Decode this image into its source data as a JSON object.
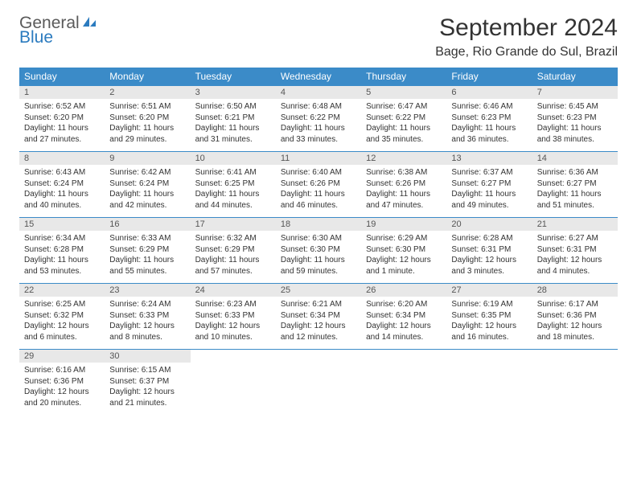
{
  "brand": {
    "name_part1": "General",
    "name_part2": "Blue",
    "icon_color": "#2b7bbf"
  },
  "header": {
    "title": "September 2024",
    "location": "Bage, Rio Grande do Sul, Brazil"
  },
  "colors": {
    "header_bg": "#3b8bc8",
    "header_text": "#ffffff",
    "daynum_bg": "#e8e8e8",
    "row_border": "#3b8bc8",
    "text": "#333333"
  },
  "day_names": [
    "Sunday",
    "Monday",
    "Tuesday",
    "Wednesday",
    "Thursday",
    "Friday",
    "Saturday"
  ],
  "weeks": [
    [
      {
        "n": "1",
        "sr": "Sunrise: 6:52 AM",
        "ss": "Sunset: 6:20 PM",
        "dl": "Daylight: 11 hours and 27 minutes."
      },
      {
        "n": "2",
        "sr": "Sunrise: 6:51 AM",
        "ss": "Sunset: 6:20 PM",
        "dl": "Daylight: 11 hours and 29 minutes."
      },
      {
        "n": "3",
        "sr": "Sunrise: 6:50 AM",
        "ss": "Sunset: 6:21 PM",
        "dl": "Daylight: 11 hours and 31 minutes."
      },
      {
        "n": "4",
        "sr": "Sunrise: 6:48 AM",
        "ss": "Sunset: 6:22 PM",
        "dl": "Daylight: 11 hours and 33 minutes."
      },
      {
        "n": "5",
        "sr": "Sunrise: 6:47 AM",
        "ss": "Sunset: 6:22 PM",
        "dl": "Daylight: 11 hours and 35 minutes."
      },
      {
        "n": "6",
        "sr": "Sunrise: 6:46 AM",
        "ss": "Sunset: 6:23 PM",
        "dl": "Daylight: 11 hours and 36 minutes."
      },
      {
        "n": "7",
        "sr": "Sunrise: 6:45 AM",
        "ss": "Sunset: 6:23 PM",
        "dl": "Daylight: 11 hours and 38 minutes."
      }
    ],
    [
      {
        "n": "8",
        "sr": "Sunrise: 6:43 AM",
        "ss": "Sunset: 6:24 PM",
        "dl": "Daylight: 11 hours and 40 minutes."
      },
      {
        "n": "9",
        "sr": "Sunrise: 6:42 AM",
        "ss": "Sunset: 6:24 PM",
        "dl": "Daylight: 11 hours and 42 minutes."
      },
      {
        "n": "10",
        "sr": "Sunrise: 6:41 AM",
        "ss": "Sunset: 6:25 PM",
        "dl": "Daylight: 11 hours and 44 minutes."
      },
      {
        "n": "11",
        "sr": "Sunrise: 6:40 AM",
        "ss": "Sunset: 6:26 PM",
        "dl": "Daylight: 11 hours and 46 minutes."
      },
      {
        "n": "12",
        "sr": "Sunrise: 6:38 AM",
        "ss": "Sunset: 6:26 PM",
        "dl": "Daylight: 11 hours and 47 minutes."
      },
      {
        "n": "13",
        "sr": "Sunrise: 6:37 AM",
        "ss": "Sunset: 6:27 PM",
        "dl": "Daylight: 11 hours and 49 minutes."
      },
      {
        "n": "14",
        "sr": "Sunrise: 6:36 AM",
        "ss": "Sunset: 6:27 PM",
        "dl": "Daylight: 11 hours and 51 minutes."
      }
    ],
    [
      {
        "n": "15",
        "sr": "Sunrise: 6:34 AM",
        "ss": "Sunset: 6:28 PM",
        "dl": "Daylight: 11 hours and 53 minutes."
      },
      {
        "n": "16",
        "sr": "Sunrise: 6:33 AM",
        "ss": "Sunset: 6:29 PM",
        "dl": "Daylight: 11 hours and 55 minutes."
      },
      {
        "n": "17",
        "sr": "Sunrise: 6:32 AM",
        "ss": "Sunset: 6:29 PM",
        "dl": "Daylight: 11 hours and 57 minutes."
      },
      {
        "n": "18",
        "sr": "Sunrise: 6:30 AM",
        "ss": "Sunset: 6:30 PM",
        "dl": "Daylight: 11 hours and 59 minutes."
      },
      {
        "n": "19",
        "sr": "Sunrise: 6:29 AM",
        "ss": "Sunset: 6:30 PM",
        "dl": "Daylight: 12 hours and 1 minute."
      },
      {
        "n": "20",
        "sr": "Sunrise: 6:28 AM",
        "ss": "Sunset: 6:31 PM",
        "dl": "Daylight: 12 hours and 3 minutes."
      },
      {
        "n": "21",
        "sr": "Sunrise: 6:27 AM",
        "ss": "Sunset: 6:31 PM",
        "dl": "Daylight: 12 hours and 4 minutes."
      }
    ],
    [
      {
        "n": "22",
        "sr": "Sunrise: 6:25 AM",
        "ss": "Sunset: 6:32 PM",
        "dl": "Daylight: 12 hours and 6 minutes."
      },
      {
        "n": "23",
        "sr": "Sunrise: 6:24 AM",
        "ss": "Sunset: 6:33 PM",
        "dl": "Daylight: 12 hours and 8 minutes."
      },
      {
        "n": "24",
        "sr": "Sunrise: 6:23 AM",
        "ss": "Sunset: 6:33 PM",
        "dl": "Daylight: 12 hours and 10 minutes."
      },
      {
        "n": "25",
        "sr": "Sunrise: 6:21 AM",
        "ss": "Sunset: 6:34 PM",
        "dl": "Daylight: 12 hours and 12 minutes."
      },
      {
        "n": "26",
        "sr": "Sunrise: 6:20 AM",
        "ss": "Sunset: 6:34 PM",
        "dl": "Daylight: 12 hours and 14 minutes."
      },
      {
        "n": "27",
        "sr": "Sunrise: 6:19 AM",
        "ss": "Sunset: 6:35 PM",
        "dl": "Daylight: 12 hours and 16 minutes."
      },
      {
        "n": "28",
        "sr": "Sunrise: 6:17 AM",
        "ss": "Sunset: 6:36 PM",
        "dl": "Daylight: 12 hours and 18 minutes."
      }
    ],
    [
      {
        "n": "29",
        "sr": "Sunrise: 6:16 AM",
        "ss": "Sunset: 6:36 PM",
        "dl": "Daylight: 12 hours and 20 minutes."
      },
      {
        "n": "30",
        "sr": "Sunrise: 6:15 AM",
        "ss": "Sunset: 6:37 PM",
        "dl": "Daylight: 12 hours and 21 minutes."
      },
      null,
      null,
      null,
      null,
      null
    ]
  ]
}
